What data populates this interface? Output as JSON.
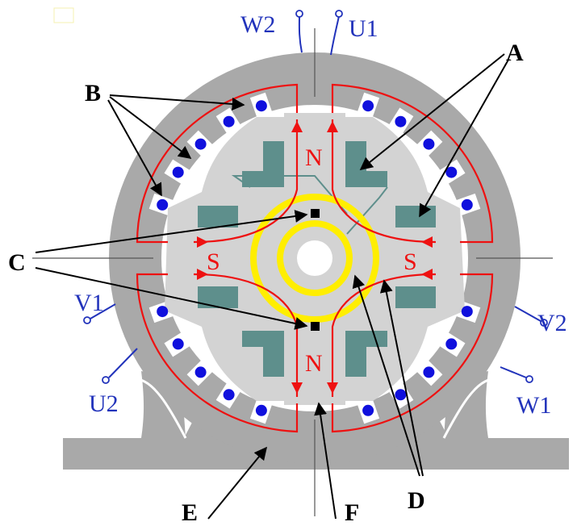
{
  "terminals": {
    "w2": "W2",
    "u1": "U1",
    "v1": "V1",
    "u2": "U2",
    "v2": "V2",
    "w1": "W1"
  },
  "poles": {
    "north_top": "N",
    "north_bottom": "N",
    "south_left": "S",
    "south_right": "S"
  },
  "callouts": {
    "a": "A",
    "b": "B",
    "c": "C",
    "d": "D",
    "e": "E",
    "f": "F"
  },
  "colors": {
    "frame": "#a9a9a9",
    "rotor": "#d3d3d3",
    "slot_conductor": "#1010dd",
    "field_winding": "#5e8f8c",
    "flux_line": "#ee1111",
    "slip_ring": "#ffee00",
    "terminal_text": "#2233bb"
  }
}
